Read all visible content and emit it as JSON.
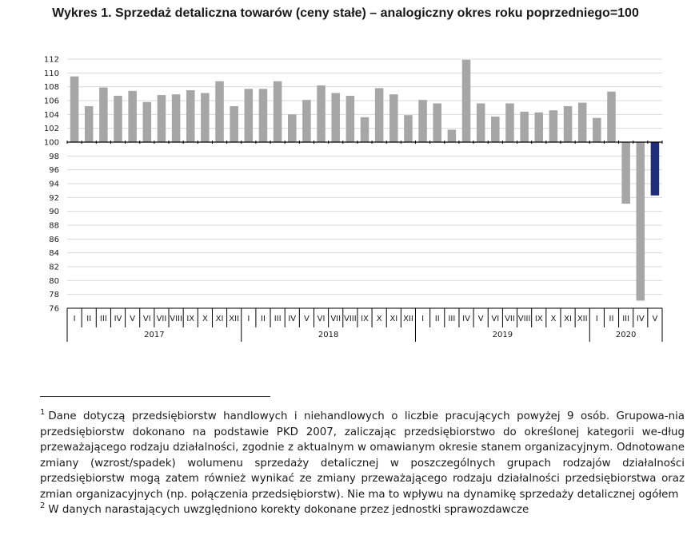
{
  "chart_data": {
    "type": "bar",
    "title": "Wykres 1. Sprzedaż detaliczna towarów (ceny stałe) – analogiczny okres roku poprzedniego=100",
    "xlabel": "",
    "ylabel": "",
    "ylim": [
      76,
      112
    ],
    "yticks": [
      "112",
      "110",
      "108",
      "106",
      "104",
      "102",
      "100",
      "98",
      "96",
      "94",
      "92",
      "90",
      "88",
      "86",
      "84",
      "82",
      "80",
      "78",
      "76"
    ],
    "baseline": 100,
    "grid": true,
    "months": [
      "I",
      "II",
      "III",
      "IV",
      "V",
      "VI",
      "VII",
      "VIII",
      "IX",
      "X",
      "XI",
      "XII",
      "I",
      "II",
      "III",
      "IV",
      "V",
      "VI",
      "VII",
      "VIII",
      "IX",
      "X",
      "XI",
      "XII",
      "I",
      "II",
      "III",
      "IV",
      "V",
      "VI",
      "VII",
      "VIII",
      "IX",
      "X",
      "XI",
      "XII",
      "I",
      "II",
      "III",
      "IV",
      "V"
    ],
    "years": [
      "2017",
      "2018",
      "2019",
      "2020"
    ],
    "values": [
      109.5,
      105.2,
      107.9,
      106.7,
      107.4,
      105.8,
      106.8,
      106.9,
      107.5,
      107.1,
      108.8,
      105.2,
      107.7,
      107.7,
      108.8,
      104.0,
      106.1,
      108.2,
      107.1,
      106.7,
      103.6,
      107.8,
      106.9,
      103.9,
      106.1,
      105.6,
      101.8,
      111.9,
      105.6,
      103.7,
      105.6,
      104.4,
      104.3,
      104.6,
      105.2,
      105.7,
      103.5,
      107.3,
      91.1,
      77.1,
      92.3
    ],
    "colors": {
      "default": "#a6a6a6",
      "highlight": "#1f2d7a"
    },
    "highlight_index": 40
  },
  "footnotes": {
    "note1_number": "1",
    "note1_text": "Dane dotyczą przedsiębiorstw handlowych i niehandlowych o liczbie pracujących powyżej 9 osób. Grupowa-nia przedsiębiorstw dokonano na podstawie PKD 2007, zaliczając przedsiębiorstwo do określonej kategorii we-dług przeważającego rodzaju działalności, zgodnie z aktualnym w omawianym okresie stanem organizacyjnym. Odnotowane zmiany (wzrost/spadek) wolumenu sprzedaży detalicznej w poszczególnych grupach rodzajów działalności przedsiębiorstw mogą zatem również wynikać ze zmiany przeważającego rodzaju działalności przedsiębiorstwa oraz zmian organizacyjnych (np. połączenia przedsiębiorstw). Nie ma to wpływu na dynamikę sprzedaży detalicznej ogółem",
    "note2_number": "2",
    "note2_text": "W danych narastających uwzględniono korekty dokonane przez jednostki sprawozdawcze"
  }
}
